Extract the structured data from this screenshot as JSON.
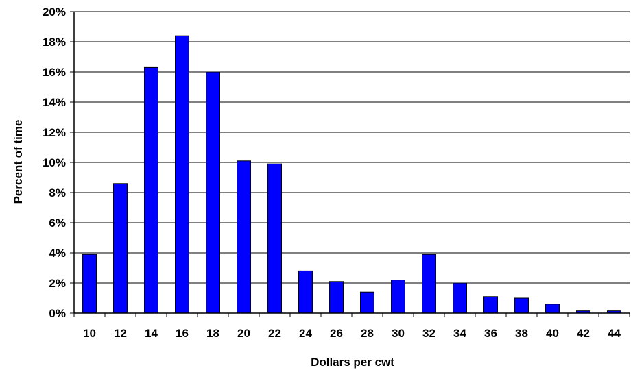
{
  "chart_data": {
    "type": "bar",
    "title": "",
    "xlabel": "Dollars per cwt",
    "ylabel": "Percent of time",
    "categories": [
      "10",
      "12",
      "14",
      "16",
      "18",
      "20",
      "22",
      "24",
      "26",
      "28",
      "30",
      "32",
      "34",
      "36",
      "38",
      "40",
      "42",
      "44"
    ],
    "values": [
      3.9,
      8.6,
      16.3,
      18.4,
      16.0,
      10.1,
      9.9,
      2.8,
      2.1,
      1.4,
      2.2,
      3.9,
      2.0,
      1.1,
      1.0,
      0.6,
      0.15,
      0.15
    ],
    "ylim": [
      0,
      20
    ],
    "y_ticks": [
      "0%",
      "2%",
      "4%",
      "6%",
      "8%",
      "10%",
      "12%",
      "14%",
      "16%",
      "18%",
      "20%"
    ],
    "grid": true,
    "legend": "none",
    "colors": {
      "bar": "#0000FF",
      "bar_stroke": "#000000",
      "grid": "#000000",
      "axis": "#000000"
    }
  }
}
